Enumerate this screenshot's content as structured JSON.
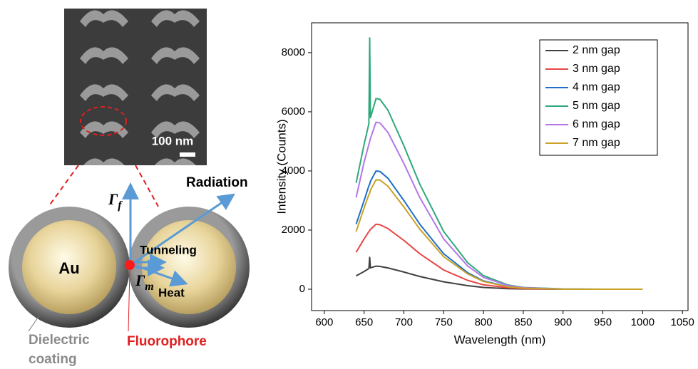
{
  "diagram": {
    "scale_bar": "100 nm",
    "sphere_label": "Au",
    "radiation": "Radiation",
    "tunneling": "Tunneling",
    "heat": "Heat",
    "gamma_f": {
      "symbol": "Γ",
      "subscript": "f"
    },
    "gamma_m": {
      "symbol": "Γ",
      "subscript": "m"
    },
    "coating": [
      "Dielectric",
      "coating"
    ],
    "fluorophore": "Fluorophore"
  },
  "chart_data": {
    "type": "line",
    "x_label": "Wavelength (nm)",
    "y_label": "Intensity (Counts)",
    "x": [
      640,
      650,
      656,
      657,
      658,
      665,
      670,
      680,
      700,
      720,
      750,
      780,
      800,
      830,
      850,
      900,
      950,
      1000
    ],
    "series": [
      {
        "name": "2 nm gap",
        "color": "#404040",
        "values": [
          450,
          600,
          700,
          1080,
          720,
          780,
          770,
          720,
          580,
          430,
          250,
          120,
          60,
          20,
          10,
          0,
          0,
          0
        ]
      },
      {
        "name": "3 nm gap",
        "color": "#e84545",
        "values": [
          1250,
          1700,
          1950,
          1980,
          2020,
          2200,
          2180,
          2050,
          1650,
          1200,
          650,
          300,
          150,
          50,
          20,
          0,
          0,
          0
        ]
      },
      {
        "name": "4 nm gap",
        "color": "#1f6fc8",
        "values": [
          2200,
          3000,
          3500,
          3550,
          3650,
          4000,
          3980,
          3750,
          3000,
          2200,
          1200,
          560,
          280,
          90,
          40,
          0,
          0,
          0
        ]
      },
      {
        "name": "5 nm gap",
        "color": "#2ea87a",
        "values": [
          3600,
          4900,
          5600,
          8500,
          5800,
          6450,
          6420,
          6050,
          4850,
          3550,
          1950,
          900,
          460,
          150,
          60,
          10,
          0,
          0
        ]
      },
      {
        "name": "6 nm gap",
        "color": "#b576e8",
        "values": [
          3100,
          4300,
          4900,
          5000,
          5100,
          5650,
          5620,
          5300,
          4250,
          3100,
          1700,
          790,
          400,
          130,
          50,
          5,
          0,
          0
        ]
      },
      {
        "name": "7 nm gap",
        "color": "#c9a227",
        "values": [
          1950,
          2750,
          3200,
          3250,
          3350,
          3700,
          3690,
          3480,
          2780,
          2030,
          1100,
          520,
          260,
          85,
          35,
          0,
          0,
          0
        ]
      }
    ],
    "xlim": [
      584,
      1057
    ],
    "ylim": [
      -723,
      9010
    ],
    "xticks": [
      600,
      650,
      700,
      750,
      800,
      850,
      900,
      950,
      1000,
      1050
    ],
    "yticks": [
      0,
      2000,
      4000,
      6000,
      8000
    ],
    "grid": false,
    "legend": "upper right"
  }
}
